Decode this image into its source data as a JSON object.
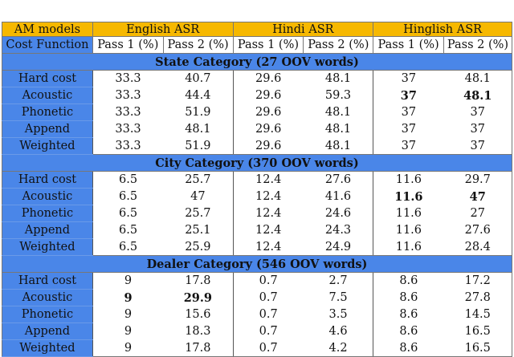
{
  "header": {
    "col0": "AM models",
    "groups": [
      "English ASR",
      "Hindi ASR",
      "Hinglish ASR"
    ]
  },
  "subheader": {
    "col0": "Cost Function",
    "passes": [
      "Pass 1 (%)",
      "Pass 2 (%)",
      "Pass 1 (%)",
      "Pass 2 (%)",
      "Pass 1 (%)",
      "Pass 2 (%)"
    ]
  },
  "sections": [
    {
      "title": "State Category (27 OOV words)",
      "rows": [
        {
          "label": "Hard cost",
          "values": [
            "33.3",
            "40.7",
            "29.6",
            "48.1",
            "37",
            "48.1"
          ],
          "bold": []
        },
        {
          "label": "Acoustic",
          "values": [
            "33.3",
            "44.4",
            "29.6",
            "59.3",
            "37",
            "48.1"
          ],
          "bold": [
            4,
            5
          ]
        },
        {
          "label": "Phonetic",
          "values": [
            "33.3",
            "51.9",
            "29.6",
            "48.1",
            "37",
            "37"
          ],
          "bold": []
        },
        {
          "label": "Append",
          "values": [
            "33.3",
            "48.1",
            "29.6",
            "48.1",
            "37",
            "37"
          ],
          "bold": []
        },
        {
          "label": "Weighted",
          "values": [
            "33.3",
            "51.9",
            "29.6",
            "48.1",
            "37",
            "37"
          ],
          "bold": []
        }
      ]
    },
    {
      "title": "City Category (370 OOV words)",
      "rows": [
        {
          "label": "Hard cost",
          "values": [
            "6.5",
            "25.7",
            "12.4",
            "27.6",
            "11.6",
            "29.7"
          ],
          "bold": []
        },
        {
          "label": "Acoustic",
          "values": [
            "6.5",
            "47",
            "12.4",
            "41.6",
            "11.6",
            "47"
          ],
          "bold": [
            4,
            5
          ]
        },
        {
          "label": "Phonetic",
          "values": [
            "6.5",
            "25.7",
            "12.4",
            "24.6",
            "11.6",
            "27"
          ],
          "bold": []
        },
        {
          "label": "Append",
          "values": [
            "6.5",
            "25.1",
            "12.4",
            "24.3",
            "11.6",
            "27.6"
          ],
          "bold": []
        },
        {
          "label": "Weighted",
          "values": [
            "6.5",
            "25.9",
            "12.4",
            "24.9",
            "11.6",
            "28.4"
          ],
          "bold": []
        }
      ]
    },
    {
      "title": "Dealer Category (546 OOV words)",
      "rows": [
        {
          "label": "Hard cost",
          "values": [
            "9",
            "17.8",
            "0.7",
            "2.7",
            "8.6",
            "17.2"
          ],
          "bold": []
        },
        {
          "label": "Acoustic",
          "values": [
            "9",
            "29.9",
            "0.7",
            "7.5",
            "8.6",
            "27.8"
          ],
          "bold": [
            0,
            1
          ]
        },
        {
          "label": "Phonetic",
          "values": [
            "9",
            "15.6",
            "0.7",
            "3.5",
            "8.6",
            "14.5"
          ],
          "bold": []
        },
        {
          "label": "Append",
          "values": [
            "9",
            "18.3",
            "0.7",
            "4.6",
            "8.6",
            "16.5"
          ],
          "bold": []
        },
        {
          "label": "Weighted",
          "values": [
            "9",
            "17.8",
            "0.7",
            "4.2",
            "8.6",
            "16.5"
          ],
          "bold": []
        }
      ]
    }
  ]
}
